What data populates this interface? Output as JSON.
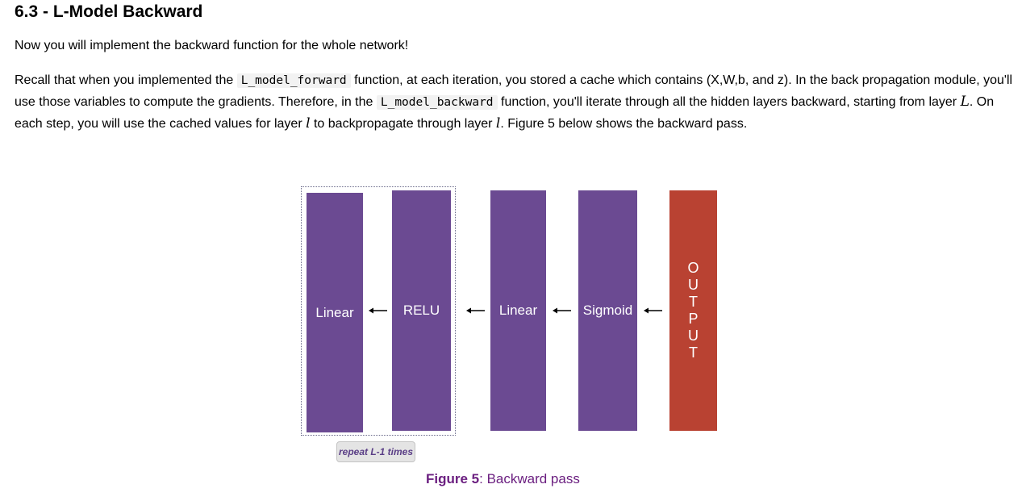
{
  "heading": "6.3 - L-Model Backward",
  "intro": "Now you will implement the backward function for the whole network!",
  "paragraph": {
    "part1": "Recall that when you implemented the ",
    "code1": "L_model_forward",
    "part2": " function, at each iteration, you stored a cache which contains (X,W,b, and z). In the back propagation module, you'll use those variables to compute the gradients. Therefore, in the ",
    "code2": "L_model_backward",
    "part3": " function, you'll iterate through all the hidden layers backward, starting from layer ",
    "math1": "L",
    "part4": ". On each step, you will use the cached values for layer ",
    "math2": "l",
    "part5": " to backpropagate through layer ",
    "math3": "l",
    "part6": ". Figure 5 below shows the backward pass."
  },
  "figure": {
    "blocks": [
      "Linear",
      "RELU",
      "Linear",
      "Sigmoid"
    ],
    "output_letters": [
      "O",
      "U",
      "T",
      "P",
      "U",
      "T"
    ],
    "repeat_label": "repeat L-1 times",
    "caption_label": "Figure 5",
    "caption_text": ": Backward pass",
    "colors": {
      "layer_block": "#6b4a92",
      "output_block": "#b94232",
      "caption": "#6b1f80"
    }
  }
}
